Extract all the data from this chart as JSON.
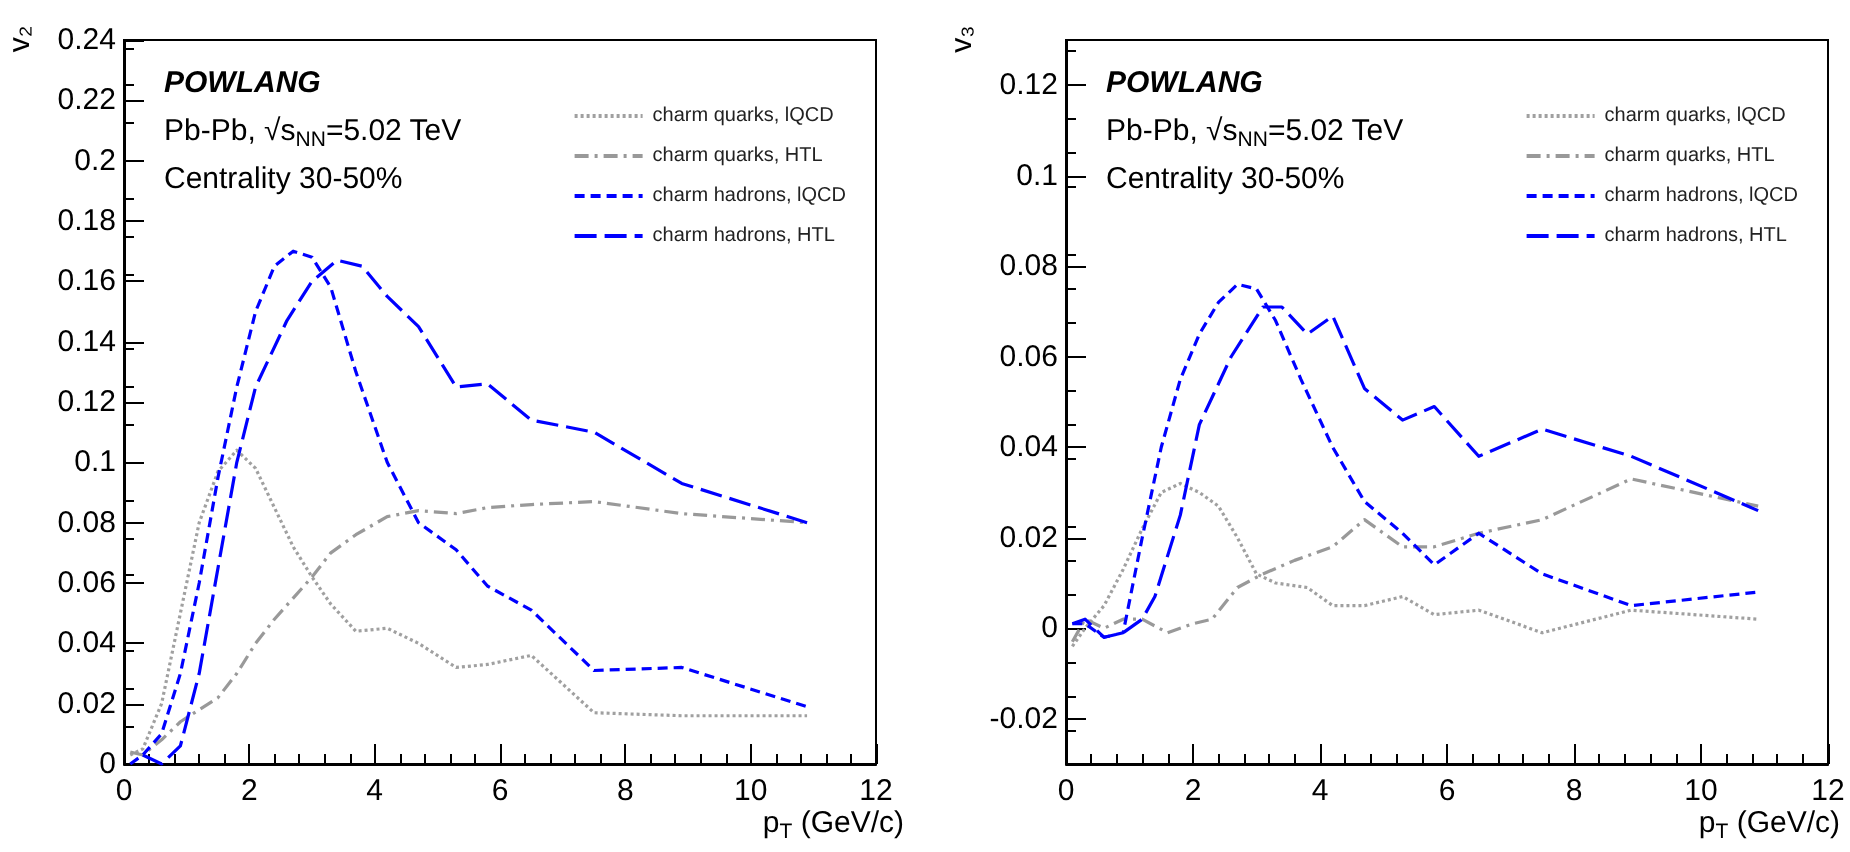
{
  "chart_data": [
    {
      "type": "line",
      "xlabel": "p$_{T}$ (GeV/c)",
      "ylabel": "v₂",
      "xlim": [
        0,
        12
      ],
      "xticks": [
        0,
        2,
        4,
        6,
        8,
        10,
        12
      ],
      "ylim": [
        0,
        0.24
      ],
      "yticks": [
        0,
        0.02,
        0.04,
        0.06,
        0.08,
        0.1,
        0.12,
        0.14,
        0.16,
        0.18,
        0.2,
        0.22,
        0.24
      ],
      "grid": false,
      "legend": "top right",
      "marker": "none",
      "annotations": [
        "POWLANG",
        "Pb-Pb, √s$_{NN}$=5.02 TeV",
        "Centrality 30-50%"
      ],
      "series": [
        {
          "name": "charm quarks, lQCD",
          "color": "#a0a0a0",
          "line_style": "dotted",
          "x": [
            0.1,
            0.3,
            0.6,
            0.9,
            1.2,
            1.5,
            1.8,
            2.1,
            2.4,
            2.7,
            3.0,
            3.3,
            3.7,
            4.2,
            4.7,
            5.3,
            5.8,
            6.5,
            7.5,
            8.9,
            10.9
          ],
          "values": [
            0.003,
            0.005,
            0.02,
            0.05,
            0.08,
            0.097,
            0.104,
            0.098,
            0.085,
            0.072,
            0.062,
            0.053,
            0.044,
            0.045,
            0.04,
            0.032,
            0.033,
            0.036,
            0.017,
            0.016,
            0.016
          ]
        },
        {
          "name": "charm quarks, HTL",
          "color": "#999999",
          "line_style": "dashdot",
          "x": [
            0.1,
            0.3,
            0.6,
            0.9,
            1.2,
            1.5,
            1.8,
            2.1,
            2.4,
            2.7,
            3.0,
            3.3,
            3.7,
            4.2,
            4.7,
            5.3,
            5.8,
            6.5,
            7.5,
            8.9,
            10.9
          ],
          "values": [
            0.004,
            0.003,
            0.008,
            0.014,
            0.018,
            0.022,
            0.03,
            0.04,
            0.048,
            0.055,
            0.062,
            0.07,
            0.076,
            0.082,
            0.084,
            0.083,
            0.085,
            0.086,
            0.087,
            0.083,
            0.08
          ]
        },
        {
          "name": "charm hadrons, lQCD",
          "color": "#0000ff",
          "line_style": "dashed",
          "x": [
            0.1,
            0.3,
            0.6,
            0.9,
            1.2,
            1.5,
            1.8,
            2.1,
            2.4,
            2.7,
            3.0,
            3.3,
            3.7,
            4.2,
            4.7,
            5.3,
            5.8,
            6.5,
            7.5,
            8.9,
            10.9
          ],
          "values": [
            0,
            0.003,
            0.01,
            0.03,
            0.06,
            0.095,
            0.125,
            0.15,
            0.165,
            0.17,
            0.168,
            0.158,
            0.13,
            0.1,
            0.08,
            0.071,
            0.059,
            0.051,
            0.031,
            0.032,
            0.019
          ]
        },
        {
          "name": "charm hadrons, HTL",
          "color": "#0000ff",
          "line_style": "longdash",
          "x": [
            0.3,
            0.6,
            0.9,
            1.2,
            1.5,
            1.8,
            2.1,
            2.6,
            3.0,
            3.4,
            3.8,
            4.2,
            4.7,
            5.3,
            5.8,
            6.5,
            7.5,
            8.9,
            10.9
          ],
          "values": [
            0.003,
            0,
            0.006,
            0.03,
            0.065,
            0.1,
            0.125,
            0.147,
            0.16,
            0.167,
            0.165,
            0.155,
            0.145,
            0.125,
            0.126,
            0.114,
            0.11,
            0.093,
            0.08
          ]
        }
      ]
    },
    {
      "type": "line",
      "xlabel": "p$_{T}$ (GeV/c)",
      "ylabel": "v₃",
      "xlim": [
        0,
        12
      ],
      "xticks": [
        0,
        2,
        4,
        6,
        8,
        10,
        12
      ],
      "ylim": [
        -0.03,
        0.13
      ],
      "yticks": [
        -0.02,
        0,
        0.02,
        0.04,
        0.06,
        0.08,
        0.1,
        0.12
      ],
      "grid": false,
      "legend": "top right",
      "marker": "none",
      "annotations": [
        "POWLANG",
        "Pb-Pb, √s$_{NN}$=5.02 TeV",
        "Centrality 30-50%"
      ],
      "series": [
        {
          "name": "charm quarks, lQCD",
          "color": "#a0a0a0",
          "line_style": "dotted",
          "x": [
            0.1,
            0.3,
            0.6,
            0.9,
            1.2,
            1.5,
            1.8,
            2.1,
            2.4,
            2.7,
            3.0,
            3.3,
            3.8,
            4.2,
            4.7,
            5.3,
            5.8,
            6.5,
            7.5,
            8.9,
            10.9
          ],
          "values": [
            -0.004,
            0,
            0.005,
            0.013,
            0.022,
            0.03,
            0.032,
            0.03,
            0.027,
            0.02,
            0.012,
            0.01,
            0.009,
            0.005,
            0.005,
            0.007,
            0.003,
            0.004,
            -0.001,
            0.004,
            0.002
          ]
        },
        {
          "name": "charm quarks, HTL",
          "color": "#999999",
          "line_style": "dashdot",
          "x": [
            0.1,
            0.3,
            0.6,
            0.9,
            1.2,
            1.6,
            2.0,
            2.3,
            2.7,
            3.1,
            3.6,
            4.2,
            4.7,
            5.3,
            5.8,
            6.5,
            7.5,
            8.9,
            10.9
          ],
          "values": [
            -0.003,
            0.002,
            0,
            0.002,
            0.002,
            -0.001,
            0.001,
            0.002,
            0.009,
            0.012,
            0.015,
            0.018,
            0.024,
            0.018,
            0.018,
            0.021,
            0.024,
            0.033,
            0.027
          ]
        },
        {
          "name": "charm hadrons, lQCD",
          "color": "#0000ff",
          "line_style": "dashed",
          "x": [
            0.1,
            0.3,
            0.6,
            0.9,
            1.2,
            1.5,
            1.8,
            2.1,
            2.4,
            2.7,
            3.0,
            3.3,
            3.7,
            4.2,
            4.7,
            5.3,
            5.8,
            6.5,
            7.5,
            8.9,
            10.9
          ],
          "values": [
            0.001,
            0.001,
            -0.002,
            -0.001,
            0.02,
            0.04,
            0.055,
            0.065,
            0.072,
            0.076,
            0.075,
            0.068,
            0.055,
            0.04,
            0.028,
            0.021,
            0.014,
            0.021,
            0.012,
            0.005,
            0.008
          ]
        },
        {
          "name": "charm hadrons, HTL",
          "color": "#0000ff",
          "line_style": "longdash",
          "x": [
            0.1,
            0.3,
            0.6,
            0.9,
            1.2,
            1.4,
            1.8,
            2.1,
            2.6,
            3.1,
            3.4,
            3.8,
            4.2,
            4.7,
            5.3,
            5.8,
            6.5,
            7.5,
            8.9,
            10.9
          ],
          "values": [
            0.001,
            0.002,
            -0.002,
            -0.001,
            0.002,
            0.007,
            0.025,
            0.045,
            0.06,
            0.071,
            0.071,
            0.065,
            0.069,
            0.053,
            0.046,
            0.049,
            0.038,
            0.044,
            0.038,
            0.026
          ]
        }
      ]
    }
  ]
}
